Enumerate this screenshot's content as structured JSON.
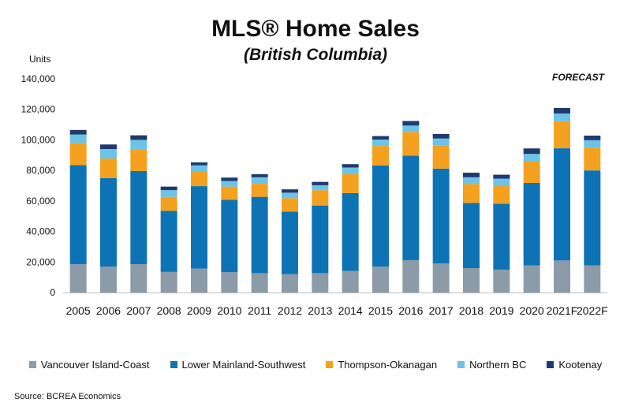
{
  "chart_data": {
    "type": "bar",
    "stacked": true,
    "title": "MLS® Home Sales",
    "subtitle": "(British Columbia)",
    "ylabel": "Units",
    "annotation": "FORECAST",
    "source": "Source: BCREA Economics",
    "ylim": [
      0,
      140000
    ],
    "yticks": [
      "0",
      "20,000",
      "40,000",
      "60,000",
      "80,000",
      "100,000",
      "120,000",
      "140,000"
    ],
    "ytick_values": [
      0,
      20000,
      40000,
      60000,
      80000,
      100000,
      120000,
      140000
    ],
    "grid": false,
    "legend_position": "bottom",
    "categories": [
      "2005",
      "2006",
      "2007",
      "2008",
      "2009",
      "2010",
      "2011",
      "2012",
      "2013",
      "2014",
      "2015",
      "2016",
      "2017",
      "2018",
      "2019",
      "2020",
      "2021F",
      "2022F"
    ],
    "series": [
      {
        "name": "Vancouver Island-Coast",
        "color": "#8B9BA8",
        "values": [
          18500,
          17000,
          18600,
          13500,
          15700,
          13300,
          12700,
          12000,
          12700,
          14200,
          17000,
          21200,
          19000,
          16000,
          15000,
          17800,
          21000,
          17800
        ]
      },
      {
        "name": "Lower Mainland-Southwest",
        "color": "#0E73B5",
        "values": [
          65000,
          58000,
          61000,
          40000,
          54000,
          47400,
          50000,
          41000,
          44300,
          51000,
          66300,
          68500,
          62200,
          42700,
          43200,
          54000,
          73500,
          62200
        ]
      },
      {
        "name": "Thompson-Okanagan",
        "color": "#F4A11F",
        "values": [
          14500,
          12800,
          14500,
          9200,
          9600,
          8700,
          8500,
          8800,
          10000,
          12300,
          12700,
          15500,
          15300,
          12400,
          11800,
          14200,
          17800,
          15000
        ]
      },
      {
        "name": "Northern BC",
        "color": "#6BC3E8",
        "values": [
          5500,
          6200,
          5900,
          4400,
          4000,
          3700,
          4300,
          3600,
          3300,
          4400,
          4200,
          4200,
          4400,
          4400,
          4600,
          4800,
          5000,
          4800
        ]
      },
      {
        "name": "Kootenay",
        "color": "#1F3A6E",
        "values": [
          3000,
          3000,
          3000,
          2300,
          2000,
          2200,
          2000,
          2200,
          2200,
          2200,
          2300,
          3000,
          3000,
          3000,
          2600,
          3600,
          3600,
          3000
        ]
      }
    ]
  }
}
